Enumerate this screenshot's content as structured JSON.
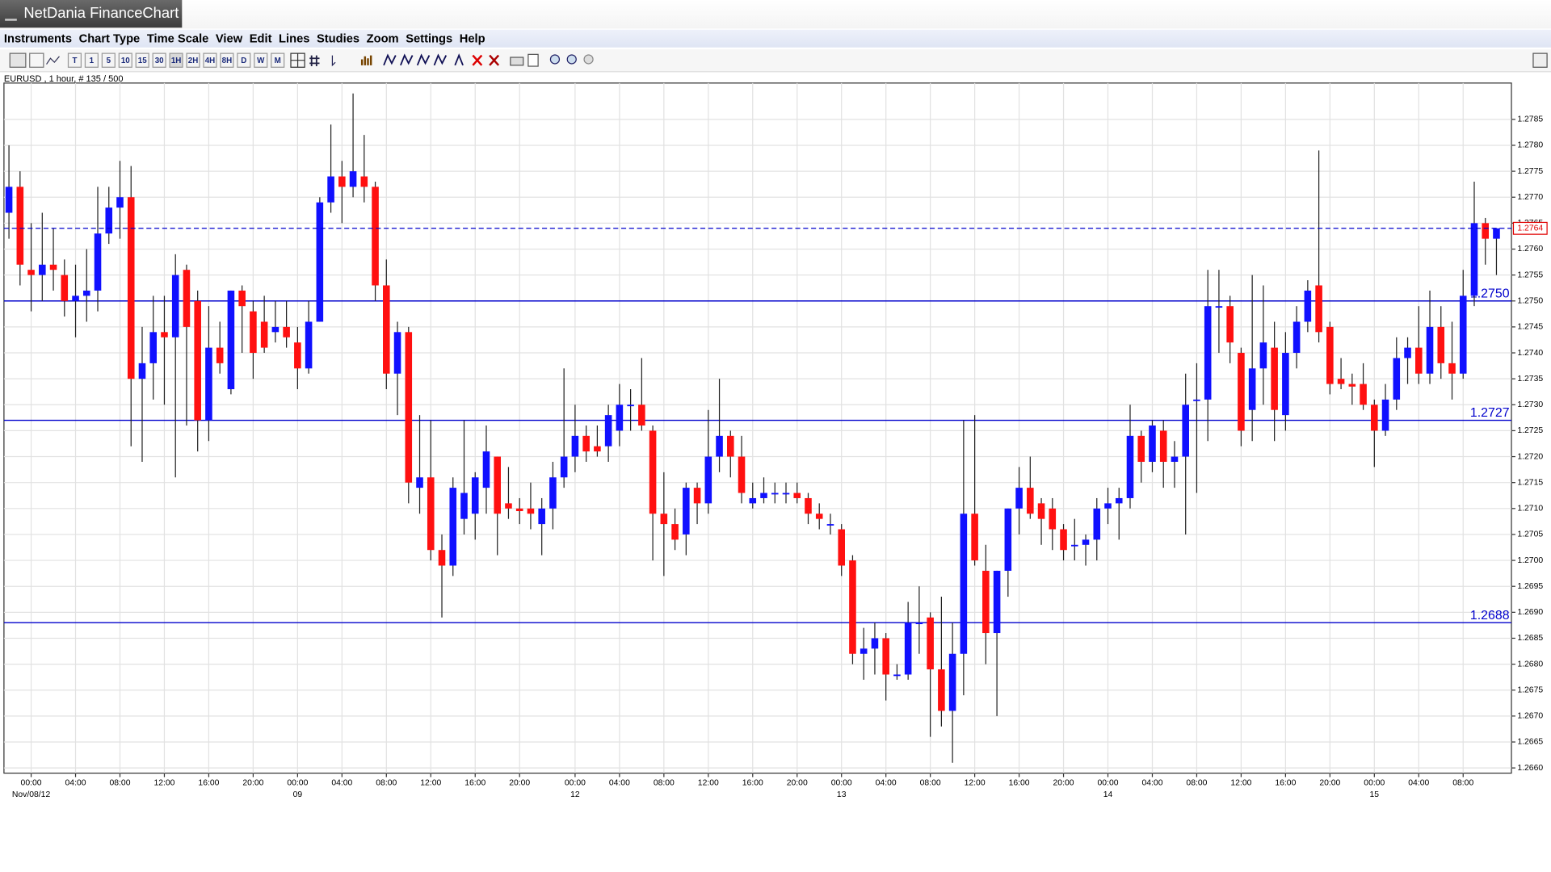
{
  "window": {
    "title": "NetDania FinanceChart"
  },
  "menu": [
    "Instruments",
    "Chart Type",
    "Time Scale",
    "View",
    "Edit",
    "Lines",
    "Studies",
    "Zoom",
    "Settings",
    "Help"
  ],
  "toolbar": {
    "timescale": [
      "T",
      "1",
      "5",
      "10",
      "15",
      "30",
      "1H",
      "2H",
      "4H",
      "8H",
      "D",
      "W",
      "M"
    ]
  },
  "chart_data": {
    "type": "candlestick",
    "title": "EURUSD , 1 hour, # 135 / 500",
    "up_color": "#1010ff",
    "down_color": "#ff1010",
    "grid": true,
    "open": [
      1.2767,
      1.2772,
      1.2756,
      1.2755,
      1.2757,
      1.2755,
      1.275,
      1.2751,
      1.2752,
      1.2763,
      1.2768,
      1.277,
      1.2735,
      1.2738,
      1.2744,
      1.2743,
      1.2756,
      1.275,
      1.2727,
      1.2741,
      1.2733,
      1.2752,
      1.2748,
      1.2746,
      1.2744,
      1.2745,
      1.2742,
      1.2737,
      1.2746,
      1.2769,
      1.2774,
      1.2772,
      1.2774,
      1.2772,
      1.2753,
      1.2736,
      1.2744,
      1.2714,
      1.2716,
      1.2702,
      1.2699,
      1.2708,
      1.2709,
      1.2714,
      1.272,
      1.2711,
      1.271,
      1.271,
      1.2707,
      1.271,
      1.2716,
      1.272,
      1.2724,
      1.2722,
      1.2722,
      1.2725,
      1.273,
      1.273,
      1.2725,
      1.2709,
      1.2707,
      1.2705,
      1.2714,
      1.2711,
      1.272,
      1.2724,
      1.272,
      1.2711,
      1.2712,
      1.2713,
      1.2713,
      1.2713,
      1.2712,
      1.2709,
      1.2707,
      1.2706,
      1.27,
      1.2682,
      1.2683,
      1.2685,
      1.2678,
      1.2678,
      1.2688,
      1.2689,
      1.2679,
      1.2671,
      1.2682,
      1.2709,
      1.2698,
      1.2686,
      1.2698,
      1.271,
      1.2714,
      1.2711,
      1.271,
      1.2706,
      1.2703,
      1.2703,
      1.2704,
      1.271,
      1.2711,
      1.2712,
      1.2724,
      1.2719,
      1.2725,
      1.2719,
      1.272,
      1.2731,
      1.2731,
      1.2749,
      1.2749,
      1.274,
      1.2729,
      1.2737,
      1.2741,
      1.2728,
      1.274,
      1.2746,
      1.2753,
      1.2745,
      1.2735,
      1.2734,
      1.2734,
      1.273,
      1.2725,
      1.2731,
      1.2739,
      1.2741,
      1.2736,
      1.2745,
      1.2738,
      1.2736,
      1.2751,
      1.2765,
      1.2762
    ],
    "high": [
      1.278,
      1.2775,
      1.2765,
      1.2767,
      1.2764,
      1.2758,
      1.2757,
      1.276,
      1.2772,
      1.2772,
      1.2777,
      1.2776,
      1.2745,
      1.2751,
      1.2751,
      1.2759,
      1.2757,
      1.2752,
      1.2749,
      1.2746,
      1.2752,
      1.2753,
      1.275,
      1.2751,
      1.275,
      1.275,
      1.2745,
      1.275,
      1.277,
      1.2784,
      1.2777,
      1.279,
      1.2782,
      1.2773,
      1.2758,
      1.2746,
      1.2745,
      1.2728,
      1.2727,
      1.2705,
      1.2716,
      1.2727,
      1.2717,
      1.2726,
      1.272,
      1.2718,
      1.2712,
      1.2715,
      1.2712,
      1.2719,
      1.2737,
      1.273,
      1.2726,
      1.2726,
      1.273,
      1.2734,
      1.2733,
      1.2739,
      1.2726,
      1.2717,
      1.271,
      1.2715,
      1.2715,
      1.2729,
      1.2735,
      1.2725,
      1.2724,
      1.2715,
      1.2716,
      1.2715,
      1.2715,
      1.2715,
      1.2713,
      1.2711,
      1.2709,
      1.2707,
      1.2701,
      1.2687,
      1.2688,
      1.2686,
      1.268,
      1.2692,
      1.2695,
      1.269,
      1.2693,
      1.2688,
      1.2727,
      1.2728,
      1.2703,
      1.2698,
      1.271,
      1.2718,
      1.272,
      1.2712,
      1.2712,
      1.2707,
      1.2708,
      1.2705,
      1.2712,
      1.2714,
      1.2714,
      1.273,
      1.2725,
      1.2727,
      1.2727,
      1.2723,
      1.2736,
      1.2738,
      1.2756,
      1.2756,
      1.2751,
      1.2741,
      1.2755,
      1.2753,
      1.2746,
      1.2744,
      1.2749,
      1.2754,
      1.2779,
      1.2746,
      1.2739,
      1.2736,
      1.2738,
      1.2731,
      1.2734,
      1.2743,
      1.2743,
      1.2749,
      1.2752,
      1.2749,
      1.2746,
      1.2756,
      1.2773,
      1.2766,
      1.2764
    ],
    "low": [
      1.2762,
      1.2753,
      1.2748,
      1.275,
      1.2752,
      1.2747,
      1.2743,
      1.2746,
      1.2748,
      1.2761,
      1.2762,
      1.2722,
      1.2719,
      1.2731,
      1.273,
      1.2716,
      1.2726,
      1.2721,
      1.2723,
      1.2736,
      1.2732,
      1.274,
      1.2735,
      1.274,
      1.2742,
      1.2741,
      1.2733,
      1.2736,
      1.2746,
      1.2767,
      1.2765,
      1.277,
      1.2769,
      1.275,
      1.2733,
      1.2728,
      1.2711,
      1.2709,
      1.27,
      1.2689,
      1.2697,
      1.2705,
      1.2704,
      1.2709,
      1.2701,
      1.2708,
      1.2707,
      1.2706,
      1.2701,
      1.2706,
      1.2714,
      1.2717,
      1.2719,
      1.272,
      1.2719,
      1.2722,
      1.2725,
      1.2725,
      1.27,
      1.2697,
      1.2702,
      1.2701,
      1.2707,
      1.2709,
      1.2717,
      1.2716,
      1.2711,
      1.271,
      1.2711,
      1.2711,
      1.2711,
      1.2711,
      1.2707,
      1.2706,
      1.2705,
      1.2697,
      1.268,
      1.2677,
      1.2678,
      1.2673,
      1.2677,
      1.2677,
      1.2682,
      1.2666,
      1.2668,
      1.2661,
      1.2674,
      1.2699,
      1.268,
      1.267,
      1.2693,
      1.2705,
      1.2708,
      1.2703,
      1.2702,
      1.27,
      1.27,
      1.2699,
      1.27,
      1.2707,
      1.2704,
      1.271,
      1.2715,
      1.2717,
      1.2714,
      1.2714,
      1.2705,
      1.2713,
      1.2723,
      1.274,
      1.2738,
      1.2722,
      1.2723,
      1.273,
      1.2723,
      1.2725,
      1.2737,
      1.2744,
      1.2742,
      1.2732,
      1.2733,
      1.273,
      1.2729,
      1.2718,
      1.2724,
      1.2729,
      1.2734,
      1.2734,
      1.2734,
      1.2735,
      1.2731,
      1.2735,
      1.2749,
      1.2757,
      1.2755
    ],
    "close": [
      1.2772,
      1.2757,
      1.2755,
      1.2757,
      1.2756,
      1.275,
      1.2751,
      1.2752,
      1.2763,
      1.2768,
      1.277,
      1.2735,
      1.2738,
      1.2744,
      1.2743,
      1.2755,
      1.2745,
      1.2727,
      1.2741,
      1.2738,
      1.2752,
      1.2749,
      1.274,
      1.2741,
      1.2745,
      1.2743,
      1.2737,
      1.2746,
      1.2769,
      1.2774,
      1.2772,
      1.2775,
      1.2772,
      1.2753,
      1.2736,
      1.2744,
      1.2715,
      1.2716,
      1.2702,
      1.2699,
      1.2714,
      1.2713,
      1.2716,
      1.2721,
      1.2709,
      1.271,
      1.27095,
      1.2709,
      1.271,
      1.2716,
      1.272,
      1.2724,
      1.2721,
      1.2721,
      1.2728,
      1.273,
      1.273,
      1.2726,
      1.2709,
      1.2707,
      1.2704,
      1.2714,
      1.2711,
      1.272,
      1.2724,
      1.272,
      1.2713,
      1.2712,
      1.2713,
      1.2713,
      1.2713,
      1.2712,
      1.2709,
      1.2708,
      1.2707,
      1.2699,
      1.2682,
      1.2683,
      1.2685,
      1.2678,
      1.2678,
      1.2688,
      1.2688,
      1.2679,
      1.2671,
      1.2682,
      1.2709,
      1.27,
      1.2686,
      1.2698,
      1.271,
      1.2714,
      1.2709,
      1.2708,
      1.2706,
      1.2702,
      1.2703,
      1.2704,
      1.271,
      1.2711,
      1.2712,
      1.2724,
      1.2719,
      1.2726,
      1.2719,
      1.272,
      1.273,
      1.2731,
      1.2749,
      1.2749,
      1.2742,
      1.2725,
      1.2737,
      1.2742,
      1.2729,
      1.274,
      1.2746,
      1.2752,
      1.2744,
      1.2734,
      1.2734,
      1.27335,
      1.273,
      1.2725,
      1.2731,
      1.2739,
      1.2741,
      1.2736,
      1.2745,
      1.2738,
      1.2736,
      1.2751,
      1.2765,
      1.2762,
      1.2764
    ],
    "xlim": [
      -0.45,
      135.35
    ],
    "xticks": [
      {
        "value": 2,
        "label": "00:00"
      },
      {
        "value": 6,
        "label": "04:00"
      },
      {
        "value": 10,
        "label": "08:00"
      },
      {
        "value": 14,
        "label": "12:00"
      },
      {
        "value": 18,
        "label": "16:00"
      },
      {
        "value": 22,
        "label": "20:00"
      },
      {
        "value": 26,
        "label": "00:00"
      },
      {
        "value": 30,
        "label": "04:00"
      },
      {
        "value": 34,
        "label": "08:00"
      },
      {
        "value": 38,
        "label": "12:00"
      },
      {
        "value": 42,
        "label": "16:00"
      },
      {
        "value": 46,
        "label": "20:00"
      },
      {
        "value": 51,
        "label": "00:00"
      },
      {
        "value": 55,
        "label": "04:00"
      },
      {
        "value": 59,
        "label": "08:00"
      },
      {
        "value": 63,
        "label": "12:00"
      },
      {
        "value": 67,
        "label": "16:00"
      },
      {
        "value": 71,
        "label": "20:00"
      },
      {
        "value": 75,
        "label": "00:00"
      },
      {
        "value": 79,
        "label": "04:00"
      },
      {
        "value": 83,
        "label": "08:00"
      },
      {
        "value": 87,
        "label": "12:00"
      },
      {
        "value": 91,
        "label": "16:00"
      },
      {
        "value": 95,
        "label": "20:00"
      },
      {
        "value": 99,
        "label": "00:00"
      },
      {
        "value": 103,
        "label": "04:00"
      },
      {
        "value": 107,
        "label": "08:00"
      },
      {
        "value": 111,
        "label": "12:00"
      },
      {
        "value": 115,
        "label": "16:00"
      },
      {
        "value": 119,
        "label": "20:00"
      },
      {
        "value": 123,
        "label": "00:00"
      },
      {
        "value": 127,
        "label": "04:00"
      },
      {
        "value": 131,
        "label": "08:00"
      }
    ],
    "xtick_dates": [
      {
        "value": 2,
        "label": "Nov/08/12"
      },
      {
        "value": 26,
        "label": "09"
      },
      {
        "value": 51,
        "label": "12"
      },
      {
        "value": 75,
        "label": "13"
      },
      {
        "value": 99,
        "label": "14"
      },
      {
        "value": 123,
        "label": "15"
      }
    ],
    "ylim": [
      1.2659,
      1.2792
    ],
    "yticks": [
      {
        "value": 1.266,
        "label": "1.2660"
      },
      1.2665,
      {
        "value": 1.267,
        "label": "1.2670"
      },
      1.2675,
      {
        "value": 1.268,
        "label": "1.2680"
      },
      1.2685,
      {
        "value": 1.269,
        "label": "1.2690"
      },
      1.2695,
      {
        "value": 1.27,
        "label": "1.2700"
      },
      1.2705,
      {
        "value": 1.271,
        "label": "1.2710"
      },
      1.2715,
      {
        "value": 1.272,
        "label": "1.2720"
      },
      1.2725,
      {
        "value": 1.273,
        "label": "1.2730"
      },
      1.2735,
      {
        "value": 1.274,
        "label": "1.2740"
      },
      1.2745,
      {
        "value": 1.275,
        "label": "1.2750"
      },
      1.2755,
      {
        "value": 1.276,
        "label": "1.2760"
      },
      1.2765,
      {
        "value": 1.277,
        "label": "1.2770"
      },
      1.2775,
      {
        "value": 1.278,
        "label": "1.2780"
      },
      1.2785
    ],
    "levels": [
      {
        "value": 1.275,
        "label": "1.2750"
      },
      {
        "value": 1.2727,
        "label": "1.2727"
      },
      {
        "value": 1.2688,
        "label": "1.2688"
      }
    ],
    "level_color": "#0000cc",
    "last": 1.2764,
    "last_color": "#e00000"
  }
}
